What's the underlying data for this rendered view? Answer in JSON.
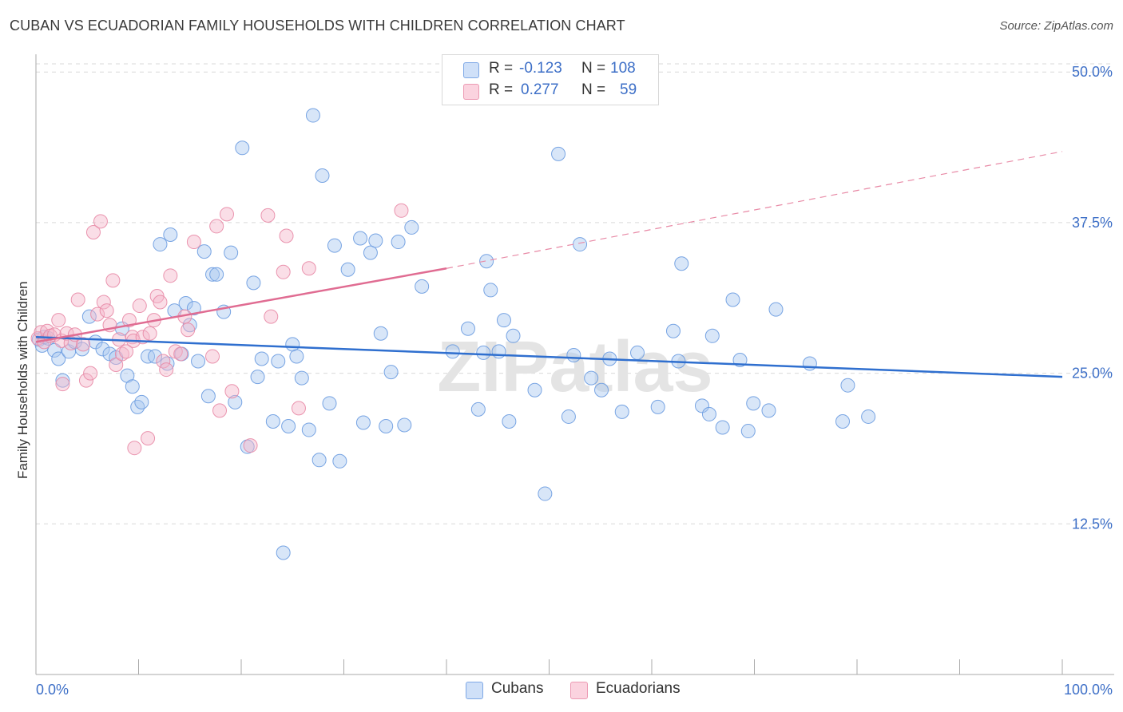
{
  "title": "CUBAN VS ECUADORIAN FAMILY HOUSEHOLDS WITH CHILDREN CORRELATION CHART",
  "source": "Source: ZipAtlas.com",
  "watermark": "ZIPatlas",
  "legend": {
    "rows": [
      {
        "r_label": "R =",
        "r_value": "-0.123",
        "n_label": "N =",
        "n_value": "108",
        "color": "#a9c8f0"
      },
      {
        "r_label": "R =",
        "r_value": "0.277",
        "n_label": "N =",
        "n_value": "59",
        "color": "#f4b6c9"
      }
    ]
  },
  "bottom_legend": [
    {
      "label": "Cubans",
      "color": "#a9c8f0"
    },
    {
      "label": "Ecuadorians",
      "color": "#f4b6c9"
    }
  ],
  "chart_data": {
    "type": "scatter",
    "title": "CUBAN VS ECUADORIAN FAMILY HOUSEHOLDS WITH CHILDREN CORRELATION CHART",
    "xlabel": "",
    "ylabel": "Family Households with Children",
    "xlim": [
      0,
      100
    ],
    "ylim": [
      0,
      52
    ],
    "x_tick_labels": [
      "0.0%",
      "100.0%"
    ],
    "y_ticks": [
      12.5,
      25.0,
      37.5,
      50.0
    ],
    "y_tick_labels": [
      "12.5%",
      "25.0%",
      "37.5%",
      "50.0%"
    ],
    "grid": "horizontal dashed",
    "series": [
      {
        "name": "Cubans",
        "color": "#6a9be0",
        "fill": "#a9c8f0",
        "trend": {
          "x0": 0,
          "y0": 28.0,
          "x1": 100,
          "y1": 24.7
        },
        "points": [
          [
            0.3,
            27.8
          ],
          [
            0.6,
            27.3
          ],
          [
            0.8,
            28.0
          ],
          [
            1.2,
            27.9
          ],
          [
            1.8,
            26.9
          ],
          [
            2.2,
            26.2
          ],
          [
            2.6,
            24.4
          ],
          [
            3.2,
            26.8
          ],
          [
            3.8,
            27.6
          ],
          [
            4.5,
            27.0
          ],
          [
            5.2,
            29.7
          ],
          [
            5.8,
            27.6
          ],
          [
            6.5,
            27.0
          ],
          [
            7.2,
            26.6
          ],
          [
            7.8,
            26.3
          ],
          [
            8.4,
            28.7
          ],
          [
            8.9,
            24.8
          ],
          [
            9.4,
            23.9
          ],
          [
            9.9,
            22.2
          ],
          [
            10.3,
            22.6
          ],
          [
            10.9,
            26.4
          ],
          [
            11.6,
            26.4
          ],
          [
            12.1,
            35.7
          ],
          [
            12.8,
            25.8
          ],
          [
            13.1,
            36.5
          ],
          [
            13.5,
            30.2
          ],
          [
            14.2,
            26.6
          ],
          [
            14.6,
            30.8
          ],
          [
            15.0,
            29.0
          ],
          [
            15.4,
            30.4
          ],
          [
            15.8,
            26.0
          ],
          [
            16.4,
            35.1
          ],
          [
            16.8,
            23.1
          ],
          [
            17.2,
            33.2
          ],
          [
            17.6,
            33.2
          ],
          [
            18.3,
            30.1
          ],
          [
            19.0,
            35.0
          ],
          [
            19.4,
            22.6
          ],
          [
            20.1,
            43.7
          ],
          [
            20.6,
            18.9
          ],
          [
            21.2,
            32.5
          ],
          [
            21.6,
            24.7
          ],
          [
            22.0,
            26.2
          ],
          [
            23.1,
            21.0
          ],
          [
            23.6,
            26.0
          ],
          [
            24.1,
            10.1
          ],
          [
            24.6,
            20.6
          ],
          [
            25.0,
            27.4
          ],
          [
            25.4,
            26.4
          ],
          [
            25.9,
            24.6
          ],
          [
            26.6,
            20.3
          ],
          [
            27.0,
            46.4
          ],
          [
            27.6,
            17.8
          ],
          [
            27.9,
            41.4
          ],
          [
            28.6,
            22.5
          ],
          [
            29.1,
            35.6
          ],
          [
            29.6,
            17.7
          ],
          [
            30.4,
            33.6
          ],
          [
            31.6,
            36.2
          ],
          [
            31.9,
            20.9
          ],
          [
            32.6,
            35.0
          ],
          [
            33.6,
            28.3
          ],
          [
            34.1,
            20.6
          ],
          [
            34.6,
            25.1
          ],
          [
            35.3,
            35.9
          ],
          [
            35.9,
            20.7
          ],
          [
            36.6,
            37.1
          ],
          [
            37.6,
            32.2
          ],
          [
            40.6,
            26.8
          ],
          [
            42.1,
            28.7
          ],
          [
            43.1,
            22.0
          ],
          [
            43.6,
            26.7
          ],
          [
            43.9,
            34.3
          ],
          [
            44.3,
            31.9
          ],
          [
            45.1,
            26.8
          ],
          [
            45.6,
            29.4
          ],
          [
            46.1,
            21.0
          ],
          [
            46.5,
            28.1
          ],
          [
            48.6,
            23.6
          ],
          [
            49.6,
            15.0
          ],
          [
            50.9,
            43.2
          ],
          [
            51.9,
            21.4
          ],
          [
            52.4,
            26.5
          ],
          [
            53.0,
            35.7
          ],
          [
            54.1,
            24.6
          ],
          [
            55.1,
            23.6
          ],
          [
            55.9,
            26.2
          ],
          [
            57.1,
            21.8
          ],
          [
            58.6,
            26.7
          ],
          [
            60.6,
            22.2
          ],
          [
            62.1,
            28.5
          ],
          [
            62.6,
            26.0
          ],
          [
            62.9,
            34.1
          ],
          [
            64.9,
            22.3
          ],
          [
            65.6,
            21.6
          ],
          [
            65.9,
            28.1
          ],
          [
            67.9,
            31.1
          ],
          [
            68.6,
            26.1
          ],
          [
            69.4,
            20.2
          ],
          [
            69.9,
            22.5
          ],
          [
            71.4,
            21.9
          ],
          [
            72.1,
            30.3
          ],
          [
            75.4,
            25.8
          ],
          [
            78.6,
            21.0
          ],
          [
            79.1,
            24.0
          ],
          [
            81.1,
            21.4
          ],
          [
            66.9,
            20.5
          ],
          [
            33.1,
            36.0
          ]
        ]
      },
      {
        "name": "Ecuadorians",
        "color": "#e88aa6",
        "fill": "#f4b6c9",
        "trend": {
          "x0": 0,
          "y0": 27.6,
          "x1": 40,
          "y1": 33.7,
          "x1_dashed": 100,
          "y1_dashed": 43.4
        },
        "points": [
          [
            0.2,
            27.9
          ],
          [
            0.5,
            28.4
          ],
          [
            0.8,
            27.6
          ],
          [
            1.1,
            28.5
          ],
          [
            1.4,
            28.1
          ],
          [
            1.8,
            28.2
          ],
          [
            2.2,
            29.4
          ],
          [
            2.5,
            27.7
          ],
          [
            2.6,
            24.1
          ],
          [
            3.0,
            28.3
          ],
          [
            3.4,
            27.5
          ],
          [
            3.8,
            28.2
          ],
          [
            4.1,
            31.1
          ],
          [
            4.6,
            27.4
          ],
          [
            4.9,
            24.4
          ],
          [
            5.3,
            25.0
          ],
          [
            5.6,
            36.7
          ],
          [
            6.0,
            29.9
          ],
          [
            6.3,
            37.6
          ],
          [
            6.6,
            30.9
          ],
          [
            6.9,
            30.2
          ],
          [
            7.2,
            29.0
          ],
          [
            7.5,
            32.7
          ],
          [
            7.8,
            25.7
          ],
          [
            8.1,
            27.8
          ],
          [
            8.4,
            26.6
          ],
          [
            8.8,
            26.8
          ],
          [
            9.1,
            29.4
          ],
          [
            9.4,
            28.0
          ],
          [
            9.5,
            27.7
          ],
          [
            9.6,
            18.8
          ],
          [
            10.1,
            30.6
          ],
          [
            10.4,
            28.0
          ],
          [
            10.9,
            19.6
          ],
          [
            11.1,
            28.3
          ],
          [
            11.5,
            29.4
          ],
          [
            11.8,
            31.4
          ],
          [
            12.1,
            30.9
          ],
          [
            12.4,
            26.0
          ],
          [
            12.7,
            25.3
          ],
          [
            13.1,
            33.1
          ],
          [
            13.6,
            26.8
          ],
          [
            14.1,
            26.6
          ],
          [
            14.5,
            29.7
          ],
          [
            14.8,
            28.6
          ],
          [
            15.4,
            35.9
          ],
          [
            17.6,
            37.2
          ],
          [
            17.9,
            21.9
          ],
          [
            18.6,
            38.2
          ],
          [
            19.1,
            23.5
          ],
          [
            20.9,
            19.0
          ],
          [
            22.6,
            38.1
          ],
          [
            22.9,
            29.7
          ],
          [
            24.1,
            33.4
          ],
          [
            24.4,
            36.4
          ],
          [
            25.6,
            22.1
          ],
          [
            26.6,
            33.7
          ],
          [
            35.6,
            38.5
          ],
          [
            17.2,
            26.4
          ]
        ]
      }
    ]
  }
}
